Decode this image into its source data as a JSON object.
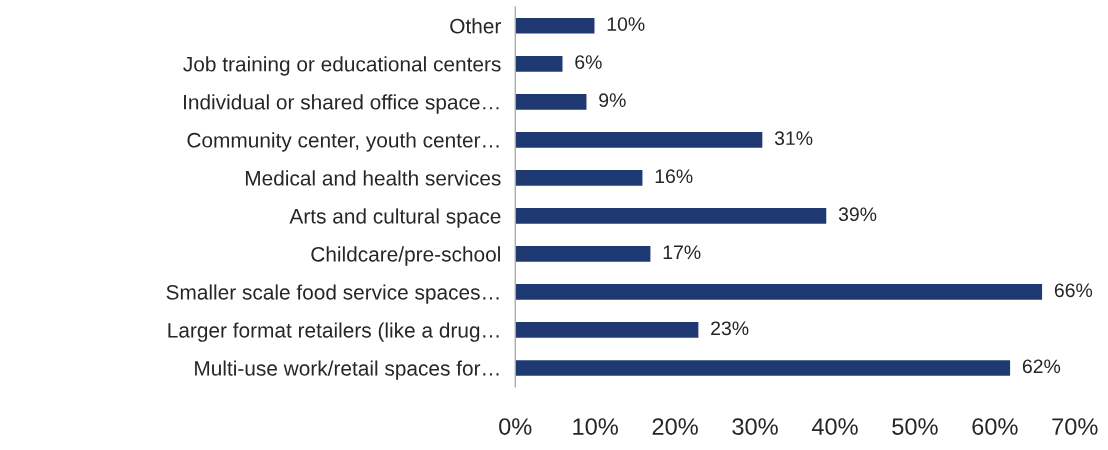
{
  "chart_data": {
    "type": "bar",
    "orientation": "horizontal",
    "categories": [
      "Other",
      "Job training or educational centers",
      "Individual or shared office space…",
      "Community center, youth center…",
      "Medical and health services",
      "Arts and cultural space",
      "Childcare/pre-school",
      "Smaller scale food service spaces…",
      "Larger format retailers (like a drug…",
      "Multi-use work/retail spaces for…"
    ],
    "values": [
      10,
      6,
      9,
      31,
      16,
      39,
      17,
      66,
      23,
      62
    ],
    "value_labels": [
      "10%",
      "6%",
      "9%",
      "31%",
      "16%",
      "39%",
      "17%",
      "66%",
      "23%",
      "62%"
    ],
    "color": "#1f3a73",
    "xlim": [
      0,
      70
    ],
    "xticks": [
      {
        "value": 0,
        "label": "0%"
      },
      {
        "value": 10,
        "label": "10%"
      },
      {
        "value": 20,
        "label": "20%"
      },
      {
        "value": 30,
        "label": "30%"
      },
      {
        "value": 40,
        "label": "40%"
      },
      {
        "value": 50,
        "label": "50%"
      },
      {
        "value": 60,
        "label": "60%"
      },
      {
        "value": 70,
        "label": "70%"
      }
    ],
    "grid": false,
    "legend": false
  }
}
